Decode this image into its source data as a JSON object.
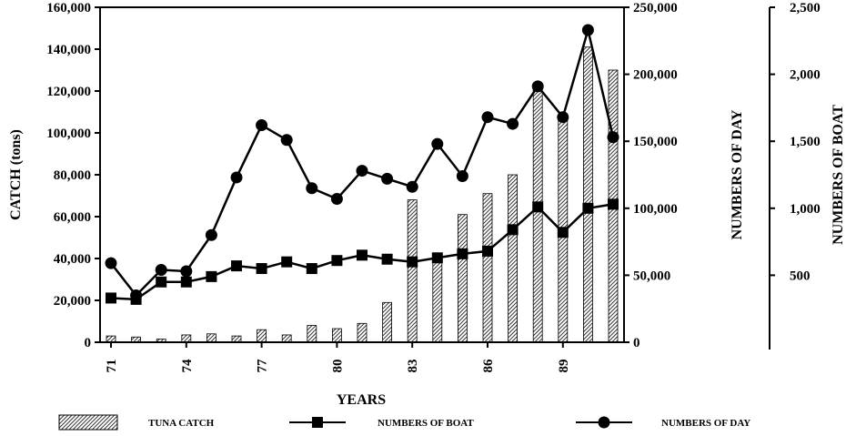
{
  "chart_data": {
    "type": "bar",
    "xlabel": "YEARS",
    "x_tick_labels": [
      "71",
      "74",
      "77",
      "80",
      "83",
      "86",
      "89"
    ],
    "x_tick_years": [
      71,
      74,
      77,
      80,
      83,
      86,
      89
    ],
    "years": [
      71,
      72,
      73,
      74,
      75,
      76,
      77,
      78,
      79,
      80,
      81,
      82,
      83,
      84,
      85,
      86,
      87,
      88,
      89,
      90,
      91
    ],
    "axes": {
      "left": {
        "label": "CATCH (tons)",
        "ylim": [
          0,
          160000
        ],
        "ticks": [
          "0",
          "20,000",
          "40,000",
          "60,000",
          "80,000",
          "100,000",
          "120,000",
          "140,000",
          "160,000"
        ]
      },
      "right1": {
        "label": "NUMBERS OF DAY",
        "ylim": [
          0,
          250000
        ],
        "ticks": [
          "0",
          "50,000",
          "100,000",
          "150,000",
          "200,000",
          "250,000"
        ]
      },
      "right2": {
        "label": "NUMBERS OF BOAT",
        "ylim": [
          0,
          2500
        ],
        "ticks": [
          "500",
          "1,000",
          "1,500",
          "2,000",
          "2,500"
        ]
      }
    },
    "series": [
      {
        "name": "TUNA CATCH",
        "type": "bar",
        "axis": "left",
        "values": [
          3000,
          2500,
          1500,
          3500,
          4000,
          3000,
          6000,
          3500,
          8000,
          6500,
          9000,
          19000,
          68000,
          41000,
          61000,
          71000,
          80000,
          122000,
          108000,
          141000,
          130000
        ]
      },
      {
        "name": "NUMBERS OF BOAT",
        "type": "line",
        "marker": "square",
        "axis": "right2",
        "values": [
          330,
          320,
          450,
          450,
          490,
          570,
          550,
          600,
          550,
          610,
          650,
          620,
          600,
          630,
          660,
          680,
          840,
          1010,
          820,
          1000,
          1030
        ]
      },
      {
        "name": "NUMBERS OF DAY",
        "type": "line",
        "marker": "circle",
        "axis": "right1",
        "values": [
          59000,
          35000,
          54000,
          53000,
          80000,
          123000,
          162000,
          151000,
          115000,
          107000,
          128000,
          122000,
          116000,
          148000,
          124000,
          168000,
          163000,
          191000,
          168000,
          233000,
          153000
        ]
      }
    ],
    "legend_position": "bottom",
    "grid": false
  }
}
